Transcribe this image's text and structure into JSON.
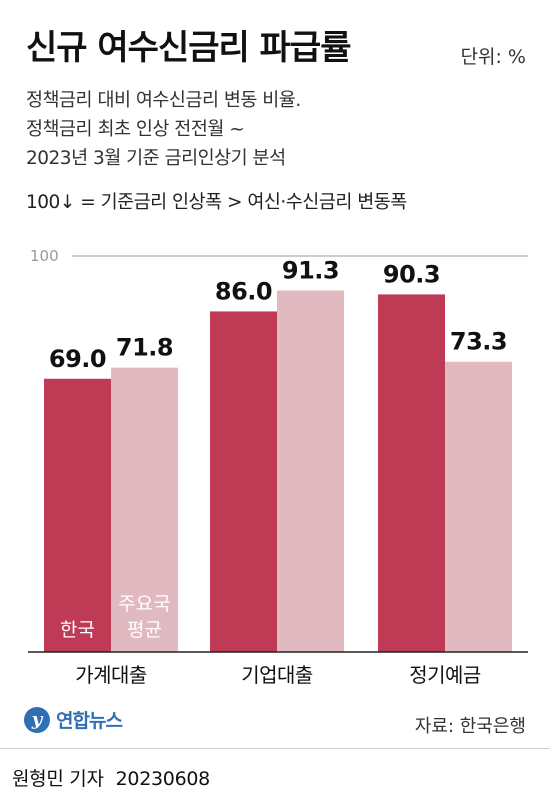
{
  "header": {
    "title": "신규 여수신금리 파급률",
    "unit": "단위: %",
    "subtitle_lines": [
      "정책금리 대비 여수신금리 변동 비율.",
      "정책금리 최초 인상 전전월 ~",
      "2023년 3월 기준 금리인상기 분석"
    ],
    "note": "100↓ = 기준금리 인상폭 > 여신·수신금리 변동폭"
  },
  "colors": {
    "korea": "#bf3a55",
    "average": "#e0b9c1"
  },
  "chart_data": {
    "type": "bar",
    "categories": [
      "가계대출",
      "기업대출",
      "정기예금"
    ],
    "series": [
      {
        "name": "한국",
        "values": [
          69.0,
          86.0,
          90.3
        ],
        "labels": [
          "69.0",
          "86.0",
          "90.3"
        ]
      },
      {
        "name": "주요국 평균",
        "values": [
          71.8,
          91.3,
          73.3
        ],
        "labels": [
          "71.8",
          "91.3",
          "73.3"
        ]
      }
    ],
    "reference_line": {
      "value": 100,
      "label": "100"
    },
    "legend_inline": [
      "한국",
      "주요국\n평균"
    ],
    "ylim": [
      0,
      100
    ]
  },
  "footer": {
    "logo_mark": "y",
    "logo_text": "연합뉴스",
    "source": "자료: 한국은행",
    "reporter": "원형민 기자",
    "date": "20230608"
  }
}
